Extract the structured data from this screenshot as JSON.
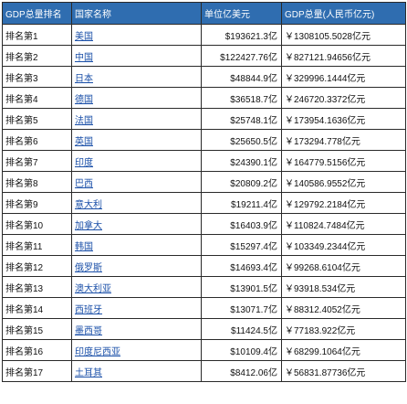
{
  "table": {
    "headers": [
      "GDP总量排名",
      "国家名称",
      "单位亿美元",
      "GDP总量(人民币亿元)"
    ],
    "rows": [
      {
        "rank": "排名第1",
        "country": "美国",
        "usd": "$193621.3亿",
        "cny": "￥1308105.5028亿元"
      },
      {
        "rank": "排名第2",
        "country": "中国",
        "usd": "$122427.76亿",
        "cny": "￥827121.94656亿元"
      },
      {
        "rank": "排名第3",
        "country": "日本",
        "usd": "$48844.9亿",
        "cny": "￥329996.1444亿元"
      },
      {
        "rank": "排名第4",
        "country": "德国",
        "usd": "$36518.7亿",
        "cny": "￥246720.3372亿元"
      },
      {
        "rank": "排名第5",
        "country": "法国",
        "usd": "$25748.1亿",
        "cny": "￥173954.1636亿元"
      },
      {
        "rank": "排名第6",
        "country": "英国",
        "usd": "$25650.5亿",
        "cny": "￥173294.778亿元"
      },
      {
        "rank": "排名第7",
        "country": "印度",
        "usd": "$24390.1亿",
        "cny": "￥164779.5156亿元"
      },
      {
        "rank": "排名第8",
        "country": "巴西",
        "usd": "$20809.2亿",
        "cny": "￥140586.9552亿元"
      },
      {
        "rank": "排名第9",
        "country": "意大利",
        "usd": "$19211.4亿",
        "cny": "￥129792.2184亿元"
      },
      {
        "rank": "排名第10",
        "country": "加拿大",
        "usd": "$16403.9亿",
        "cny": "￥110824.7484亿元"
      },
      {
        "rank": "排名第11",
        "country": "韩国",
        "usd": "$15297.4亿",
        "cny": "￥103349.2344亿元"
      },
      {
        "rank": "排名第12",
        "country": "俄罗斯",
        "usd": "$14693.4亿",
        "cny": "￥99268.6104亿元"
      },
      {
        "rank": "排名第13",
        "country": "澳大利亚",
        "usd": "$13901.5亿",
        "cny": "￥93918.534亿元"
      },
      {
        "rank": "排名第14",
        "country": "西班牙",
        "usd": "$13071.7亿",
        "cny": "￥88312.4052亿元"
      },
      {
        "rank": "排名第15",
        "country": "墨西哥",
        "usd": "$11424.5亿",
        "cny": "￥77183.922亿元"
      },
      {
        "rank": "排名第16",
        "country": "印度尼西亚",
        "usd": "$10109.4亿",
        "cny": "￥68299.1064亿元"
      },
      {
        "rank": "排名第17",
        "country": "土耳其",
        "usd": "$8412.06亿",
        "cny": "￥56831.87736亿元"
      }
    ]
  },
  "colors": {
    "header_bg": "#2f6db0",
    "link": "#1a4fa8"
  }
}
